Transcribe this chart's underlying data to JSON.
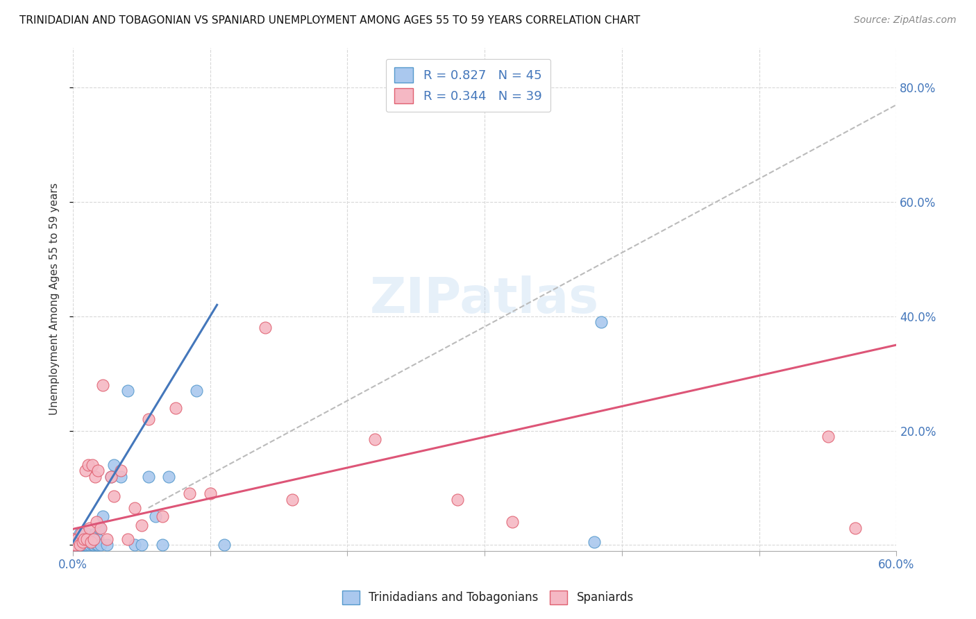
{
  "title": "TRINIDADIAN AND TOBAGONIAN VS SPANIARD UNEMPLOYMENT AMONG AGES 55 TO 59 YEARS CORRELATION CHART",
  "source": "Source: ZipAtlas.com",
  "ylabel": "Unemployment Among Ages 55 to 59 years",
  "xlim": [
    0.0,
    0.6
  ],
  "ylim": [
    -0.01,
    0.87
  ],
  "background_color": "#ffffff",
  "grid_color": "#d8d8d8",
  "blue_color": "#aac8ee",
  "pink_color": "#f5b8c4",
  "blue_edge_color": "#5599cc",
  "pink_edge_color": "#e06070",
  "blue_line_color": "#4477bb",
  "pink_line_color": "#dd5577",
  "dashed_line_color": "#bbbbbb",
  "scatter_blue_x": [
    0.0,
    0.0,
    0.002,
    0.003,
    0.004,
    0.005,
    0.005,
    0.006,
    0.006,
    0.007,
    0.007,
    0.008,
    0.008,
    0.009,
    0.009,
    0.01,
    0.01,
    0.011,
    0.012,
    0.013,
    0.014,
    0.015,
    0.015,
    0.016,
    0.017,
    0.018,
    0.018,
    0.019,
    0.02,
    0.022,
    0.025,
    0.028,
    0.03,
    0.035,
    0.04,
    0.045,
    0.05,
    0.055,
    0.06,
    0.065,
    0.07,
    0.09,
    0.11,
    0.38,
    0.385
  ],
  "scatter_blue_y": [
    0.0,
    0.01,
    0.0,
    0.005,
    0.0,
    0.01,
    0.02,
    0.0,
    0.015,
    0.0,
    0.01,
    0.0,
    0.005,
    0.0,
    0.01,
    0.0,
    0.02,
    0.005,
    0.0,
    0.01,
    0.0,
    0.0,
    0.01,
    0.02,
    0.0,
    0.0,
    0.01,
    0.03,
    0.0,
    0.05,
    0.0,
    0.12,
    0.14,
    0.12,
    0.27,
    0.0,
    0.0,
    0.12,
    0.05,
    0.0,
    0.12,
    0.27,
    0.0,
    0.005,
    0.39
  ],
  "scatter_pink_x": [
    0.0,
    0.0,
    0.002,
    0.003,
    0.005,
    0.006,
    0.007,
    0.008,
    0.009,
    0.01,
    0.011,
    0.012,
    0.013,
    0.014,
    0.015,
    0.016,
    0.017,
    0.018,
    0.02,
    0.022,
    0.025,
    0.028,
    0.03,
    0.035,
    0.04,
    0.045,
    0.05,
    0.055,
    0.065,
    0.075,
    0.085,
    0.1,
    0.14,
    0.16,
    0.22,
    0.28,
    0.32,
    0.55,
    0.57
  ],
  "scatter_pink_y": [
    0.0,
    0.01,
    0.0,
    0.01,
    0.0,
    0.02,
    0.005,
    0.01,
    0.13,
    0.01,
    0.14,
    0.03,
    0.005,
    0.14,
    0.01,
    0.12,
    0.04,
    0.13,
    0.03,
    0.28,
    0.01,
    0.12,
    0.085,
    0.13,
    0.01,
    0.065,
    0.035,
    0.22,
    0.05,
    0.24,
    0.09,
    0.09,
    0.38,
    0.08,
    0.185,
    0.08,
    0.04,
    0.19,
    0.03
  ],
  "blue_line_x": [
    0.0,
    0.105
  ],
  "blue_line_y": [
    0.005,
    0.42
  ],
  "pink_line_x": [
    0.0,
    0.6
  ],
  "pink_line_y": [
    0.028,
    0.35
  ],
  "dashed_line_x": [
    0.055,
    0.6
  ],
  "dashed_line_y": [
    0.065,
    0.77
  ],
  "xtick_positions": [
    0.0,
    0.1,
    0.2,
    0.3,
    0.4,
    0.5,
    0.6
  ],
  "xtick_labels_show": [
    "0.0%",
    "",
    "",
    "",
    "",
    "",
    "60.0%"
  ],
  "ytick_positions": [
    0.0,
    0.2,
    0.4,
    0.6,
    0.8
  ],
  "ytick_labels_right": [
    "",
    "20.0%",
    "40.0%",
    "60.0%",
    "80.0%"
  ],
  "legend1_label": "R = 0.827   N = 45",
  "legend2_label": "R = 0.344   N = 39",
  "bottom_legend_labels": [
    "Trinidadians and Tobagonians",
    "Spaniards"
  ]
}
